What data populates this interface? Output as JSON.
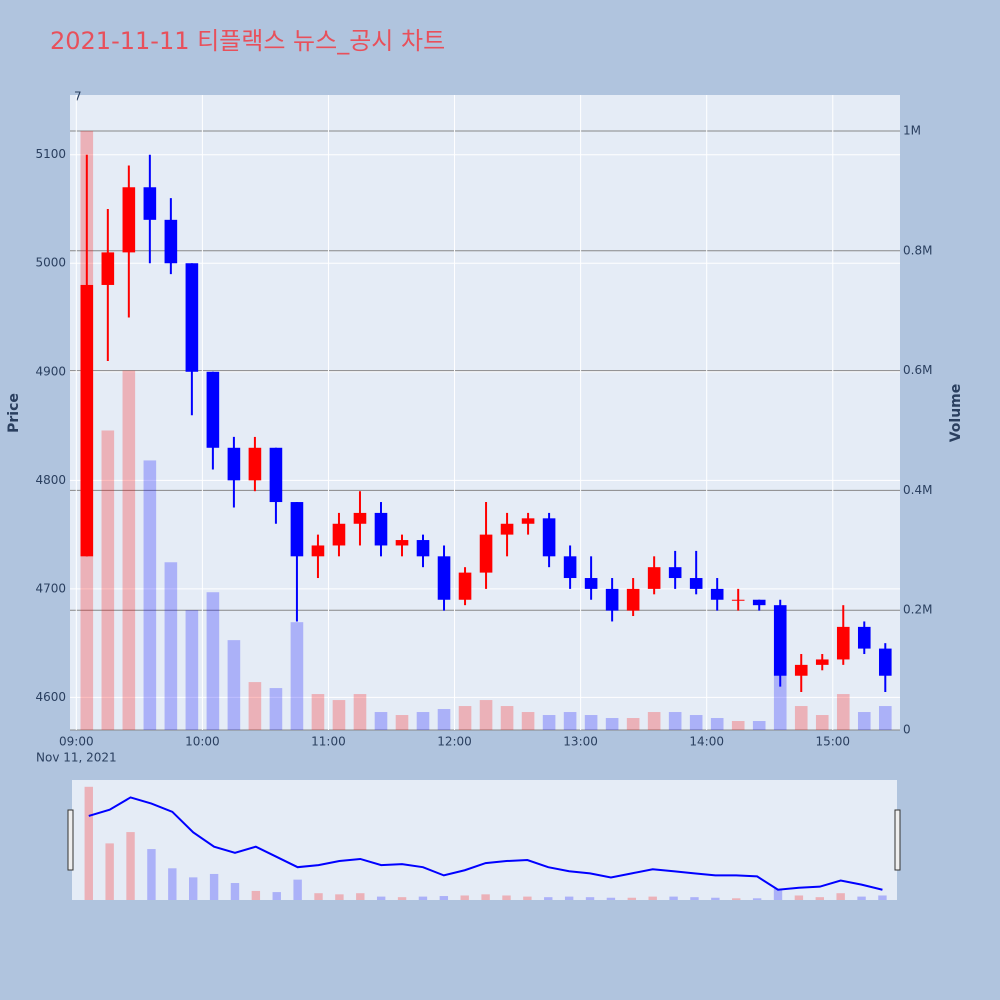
{
  "chart_data": {
    "type": "candlestick",
    "title": "2021-11-11 티플랙스 뉴스_공시 차트",
    "annotation": "7",
    "date_label": "Nov 11, 2021",
    "y_label": "Price",
    "y2_label": "Volume",
    "increasing_color": "#ff0000",
    "decreasing_color": "#0000ff",
    "x": [
      "2021-11-11 09:00",
      "2021-11-11 09:10",
      "2021-11-11 09:20",
      "2021-11-11 09:30",
      "2021-11-11 09:40",
      "2021-11-11 09:50",
      "2021-11-11 10:00",
      "2021-11-11 10:10",
      "2021-11-11 10:20",
      "2021-11-11 10:30",
      "2021-11-11 10:40",
      "2021-11-11 10:50",
      "2021-11-11 11:00",
      "2021-11-11 11:10",
      "2021-11-11 11:20",
      "2021-11-11 11:30",
      "2021-11-11 11:40",
      "2021-11-11 11:50",
      "2021-11-11 12:00",
      "2021-11-11 12:10",
      "2021-11-11 12:20",
      "2021-11-11 12:30",
      "2021-11-11 12:40",
      "2021-11-11 12:50",
      "2021-11-11 13:00",
      "2021-11-11 13:10",
      "2021-11-11 13:20",
      "2021-11-11 13:30",
      "2021-11-11 13:40",
      "2021-11-11 13:50",
      "2021-11-11 14:00",
      "2021-11-11 14:10",
      "2021-11-11 14:20",
      "2021-11-11 14:30",
      "2021-11-11 14:40",
      "2021-11-11 14:50",
      "2021-11-11 15:00",
      "2021-11-11 15:10",
      "2021-11-11 15:20"
    ],
    "open": [
      4730,
      4980,
      5010,
      5070,
      5040,
      5000,
      4900,
      4830,
      4800,
      4830,
      4780,
      4730,
      4740,
      4760,
      4770,
      4740,
      4745,
      4730,
      4690,
      4715,
      4750,
      4760,
      4765,
      4730,
      4710,
      4700,
      4680,
      4700,
      4720,
      4710,
      4700,
      4690,
      4690,
      4685,
      4620,
      4630,
      4635,
      4665,
      4645
    ],
    "high": [
      5100,
      5050,
      5090,
      5100,
      5060,
      5000,
      4900,
      4840,
      4840,
      4830,
      4780,
      4750,
      4770,
      4790,
      4780,
      4750,
      4750,
      4740,
      4720,
      4780,
      4770,
      4770,
      4770,
      4740,
      4730,
      4710,
      4710,
      4730,
      4735,
      4735,
      4710,
      4700,
      4690,
      4690,
      4640,
      4640,
      4685,
      4670,
      4650
    ],
    "low": [
      4730,
      4910,
      4950,
      5000,
      4990,
      4860,
      4810,
      4775,
      4790,
      4760,
      4670,
      4710,
      4730,
      4740,
      4730,
      4730,
      4720,
      4680,
      4685,
      4700,
      4730,
      4750,
      4720,
      4700,
      4690,
      4670,
      4675,
      4695,
      4700,
      4695,
      4680,
      4680,
      4680,
      4610,
      4605,
      4625,
      4630,
      4640,
      4605
    ],
    "close": [
      4980,
      5010,
      5070,
      5040,
      5000,
      4900,
      4830,
      4800,
      4830,
      4780,
      4730,
      4740,
      4760,
      4770,
      4740,
      4745,
      4730,
      4690,
      4715,
      4750,
      4760,
      4765,
      4730,
      4710,
      4700,
      4680,
      4700,
      4720,
      4710,
      4700,
      4690,
      4690,
      4685,
      4620,
      4630,
      4635,
      4665,
      4645,
      4620
    ],
    "volume": [
      1000000,
      500000,
      600000,
      450000,
      280000,
      200000,
      230000,
      150000,
      80000,
      70000,
      180000,
      60000,
      50000,
      60000,
      30000,
      25000,
      30000,
      35000,
      40000,
      50000,
      40000,
      30000,
      25000,
      30000,
      25000,
      20000,
      20000,
      30000,
      30000,
      25000,
      20000,
      15000,
      15000,
      100000,
      40000,
      25000,
      60000,
      30000,
      40000
    ],
    "xlim": [
      "2021-11-11 08:57",
      "2021-11-11 15:32"
    ],
    "xticks": [
      {
        "value": "2021-11-11 09:00",
        "label": "09:00"
      },
      {
        "value": "2021-11-11 10:00",
        "label": "10:00"
      },
      {
        "value": "2021-11-11 11:00",
        "label": "11:00"
      },
      {
        "value": "2021-11-11 12:00",
        "label": "12:00"
      },
      {
        "value": "2021-11-11 13:00",
        "label": "13:00"
      },
      {
        "value": "2021-11-11 14:00",
        "label": "14:00"
      },
      {
        "value": "2021-11-11 15:00",
        "label": "15:00"
      }
    ],
    "ylim": [
      4570,
      5155
    ],
    "yticks": [
      4600,
      4700,
      4800,
      4900,
      5000,
      5100
    ],
    "y2lim": [
      0,
      1060000
    ],
    "y2ticks": [
      0,
      {
        "value": 200000,
        "label": "0.2M"
      },
      {
        "value": 400000,
        "label": "0.4M"
      },
      {
        "value": 600000,
        "label": "0.6M"
      },
      {
        "value": 800000,
        "label": "0.8M"
      },
      {
        "value": 1000000,
        "label": "1M"
      }
    ]
  }
}
